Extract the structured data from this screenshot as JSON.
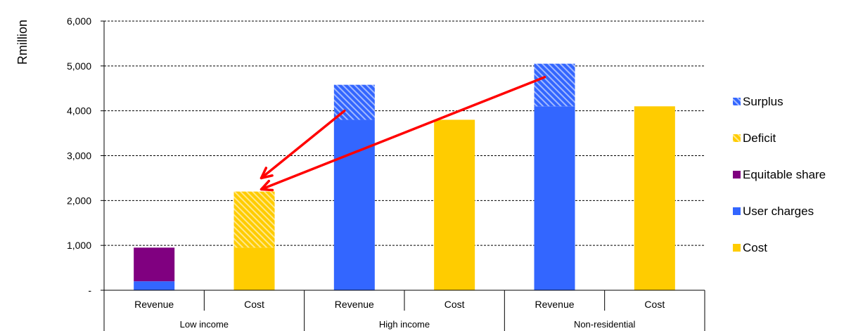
{
  "chart_data": {
    "type": "bar",
    "stacked": true,
    "title": "",
    "xlabel": "",
    "ylabel": "Rmillion",
    "ylim": [
      0,
      6000
    ],
    "y_ticks": [
      0,
      1000,
      2000,
      3000,
      4000,
      5000,
      6000
    ],
    "y_tick_labels": [
      "-",
      "1,000",
      "2,000",
      "3,000",
      "4,000",
      "5,000",
      "6,000"
    ],
    "grid": true,
    "legend_position": "right",
    "groups": [
      "Low income",
      "High income",
      "Non-residential"
    ],
    "categories": [
      "Revenue",
      "Cost",
      "Revenue",
      "Cost",
      "Revenue",
      "Cost"
    ],
    "series": [
      {
        "name": "Cost",
        "color": "#FFCC00",
        "pattern": "solid",
        "values": [
          0,
          950,
          0,
          3800,
          0,
          4100
        ]
      },
      {
        "name": "User charges",
        "color": "#3366FF",
        "pattern": "solid",
        "values": [
          200,
          0,
          3800,
          0,
          4100,
          0
        ]
      },
      {
        "name": "Equitable share",
        "color": "#800080",
        "pattern": "solid",
        "values": [
          750,
          0,
          0,
          0,
          0,
          0
        ]
      },
      {
        "name": "Deficit",
        "color": "#FFCC00",
        "pattern": "hatched",
        "values": [
          0,
          1250,
          0,
          0,
          0,
          0
        ]
      },
      {
        "name": "Surplus",
        "color": "#3366FF",
        "pattern": "hatched",
        "values": [
          0,
          0,
          780,
          0,
          950,
          0
        ]
      }
    ],
    "legend_order": [
      "Surplus",
      "Deficit",
      "Equitable share",
      "User charges",
      "Cost"
    ],
    "annotations": [
      {
        "type": "arrow",
        "color": "#FF0000",
        "from": {
          "category_index": 2,
          "y": 4000
        },
        "to": {
          "category_index": 1,
          "y": 2500
        }
      },
      {
        "type": "arrow",
        "color": "#FF0000",
        "from": {
          "category_index": 4,
          "y": 4750
        },
        "to": {
          "category_index": 1,
          "y": 2250
        }
      }
    ]
  }
}
